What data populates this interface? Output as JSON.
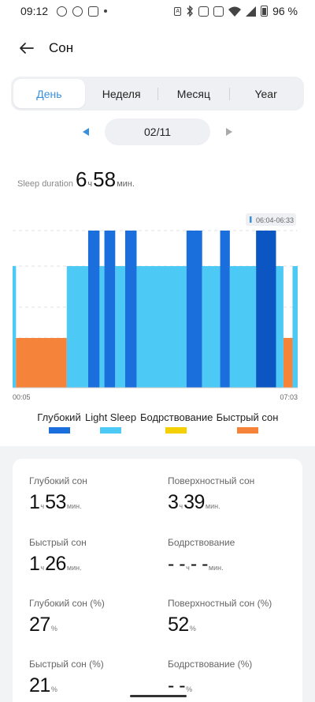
{
  "status_bar": {
    "time": "09:12",
    "left_icons": [
      "messenger-icon",
      "chat-bubble-icon",
      "watch-icon",
      "dot-icon"
    ],
    "right_icons": [
      "auto-icon",
      "bluetooth-icon",
      "nfc-icon",
      "vibrate-icon",
      "wifi-icon",
      "signal-icon",
      "battery-icon"
    ],
    "battery_pct": "96 %"
  },
  "header": {
    "title": "Сон"
  },
  "tabs": [
    {
      "label": "День",
      "active": true
    },
    {
      "label": "Неделя",
      "active": false
    },
    {
      "label": "Месяц",
      "active": false
    },
    {
      "label": "Year",
      "active": false
    }
  ],
  "date_nav": {
    "date": "02/11"
  },
  "duration": {
    "label": "Sleep duration",
    "hours": "6",
    "hours_unit": "ч",
    "minutes": "58",
    "minutes_unit": "мин."
  },
  "chart_data": {
    "type": "bar",
    "start_label": "00:05",
    "end_label": "07:03",
    "tooltip": "06:04-06:33",
    "stages": [
      "Быстрый сон",
      "Light Sleep",
      "Глубокий"
    ],
    "segments": [
      {
        "stage": "Light Sleep",
        "from": 0.0,
        "to": 0.012
      },
      {
        "stage": "Быстрый сон",
        "from": 0.012,
        "to": 0.19
      },
      {
        "stage": "Light Sleep",
        "from": 0.19,
        "to": 0.265
      },
      {
        "stage": "Глубокий",
        "from": 0.265,
        "to": 0.305
      },
      {
        "stage": "Light Sleep",
        "from": 0.305,
        "to": 0.322
      },
      {
        "stage": "Глубокий",
        "from": 0.322,
        "to": 0.36
      },
      {
        "stage": "Light Sleep",
        "from": 0.36,
        "to": 0.395
      },
      {
        "stage": "Глубокий",
        "from": 0.395,
        "to": 0.435
      },
      {
        "stage": "Light Sleep",
        "from": 0.435,
        "to": 0.61
      },
      {
        "stage": "Глубокий",
        "from": 0.61,
        "to": 0.665
      },
      {
        "stage": "Light Sleep",
        "from": 0.665,
        "to": 0.728
      },
      {
        "stage": "Глубокий",
        "from": 0.728,
        "to": 0.762
      },
      {
        "stage": "Light Sleep",
        "from": 0.762,
        "to": 0.854
      },
      {
        "stage": "Глубокий",
        "from": 0.854,
        "to": 0.924
      },
      {
        "stage": "Light Sleep",
        "from": 0.924,
        "to": 0.95
      },
      {
        "stage": "Быстрый сон",
        "from": 0.95,
        "to": 0.982
      },
      {
        "stage": "Light Sleep",
        "from": 0.982,
        "to": 1.0
      }
    ],
    "highlight_segment": 13
  },
  "legend": [
    {
      "label": "Глубокий",
      "color": "#1a6fdc"
    },
    {
      "label": "Light Sleep",
      "color": "#4cc9f5"
    },
    {
      "label": "Бодрствование",
      "color": "#f5d000"
    },
    {
      "label": "Быстрый сон",
      "color": "#f5843a"
    }
  ],
  "colors": {
    "deep": "#1a6fdc",
    "deep_highlight": "#0b56c2",
    "light": "#4cc9f5",
    "awake": "#f5d000",
    "rem": "#f5843a",
    "accent": "#3a8fdd"
  },
  "stats": [
    {
      "label": "Глубокий сон",
      "big1": "1",
      "unit1": "ч",
      "big2": "53",
      "unit2": "мин."
    },
    {
      "label": "Поверхностный сон",
      "big1": "3",
      "unit1": "ч",
      "big2": "39",
      "unit2": "мин."
    },
    {
      "label": "Быстрый сон",
      "big1": "1",
      "unit1": "ч",
      "big2": "26",
      "unit2": "мин."
    },
    {
      "label": "Бодрствование",
      "big1": "- -",
      "unit1": "ч",
      "big2": "- -",
      "unit2": "мин."
    },
    {
      "label": "Глубокий сон (%)",
      "big1": "27",
      "unit1": "%",
      "big2": "",
      "unit2": ""
    },
    {
      "label": "Поверхностный сон (%)",
      "big1": "52",
      "unit1": "%",
      "big2": "",
      "unit2": ""
    },
    {
      "label": "Быстрый сон (%)",
      "big1": "21",
      "unit1": "%",
      "big2": "",
      "unit2": ""
    },
    {
      "label": "Бодрствование (%)",
      "big1": "- -",
      "unit1": "%",
      "big2": "",
      "unit2": ""
    }
  ]
}
